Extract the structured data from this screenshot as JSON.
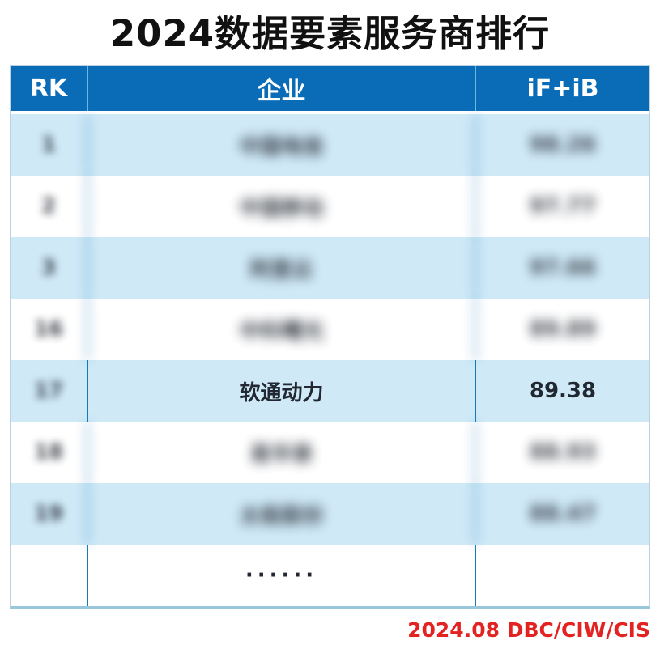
{
  "title": "2024数据要素服务商排行",
  "footer": {
    "source_label": "2024.08 DBC/CIW/CIS"
  },
  "chart_data": {
    "type": "table",
    "title": "2024数据要素服务商排行",
    "columns": [
      "RK",
      "企业",
      "iF+iB"
    ],
    "rows": [
      {
        "rk": "1",
        "company": "中国电信",
        "score": "98.26",
        "blurred": true
      },
      {
        "rk": "2",
        "company": "中国移动",
        "score": "97.77",
        "blurred": true
      },
      {
        "rk": "3",
        "company": "阿里云",
        "score": "97.66",
        "blurred": true
      },
      {
        "rk": "16",
        "company": "中科曙光",
        "score": "89.89",
        "blurred": true
      },
      {
        "rk": "17",
        "company": "软通动力",
        "score": "89.38",
        "blurred": false,
        "rank_blurred": true
      },
      {
        "rk": "18",
        "company": "易华录",
        "score": "88.93",
        "blurred": true
      },
      {
        "rk": "19",
        "company": "太极股份",
        "score": "88.47",
        "blurred": true
      },
      {
        "rk": "",
        "company": "······",
        "score": "",
        "blurred": false
      }
    ],
    "note": "All rows except rank 17 (软通动力 / 89.38) are blurred out in the source image; blurred texts and numbers are approximate placeholders.",
    "legend_position": "none",
    "grid": true
  },
  "colors": {
    "header_bg": "#0a6cb7",
    "row_alt_bg": "#cfe9f7",
    "body_divider": "#1878b8",
    "header_divider": "#6cb7e2",
    "outer_border": "#bcd2de",
    "footer_text": "#e32222",
    "title_text": "#111111"
  }
}
